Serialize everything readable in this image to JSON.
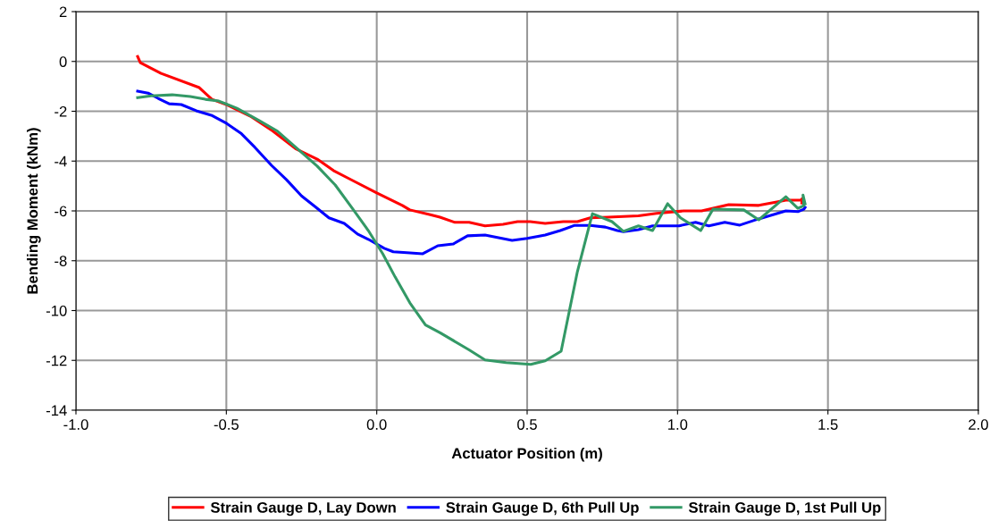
{
  "chart_data": {
    "type": "line",
    "xlabel": "Actuator Position (m)",
    "ylabel": "Bending Moment (kNm)",
    "xlim": [
      -1.0,
      2.0
    ],
    "ylim": [
      -14,
      2
    ],
    "xticks": [
      {
        "value": -1.0,
        "label": "-1.0"
      },
      {
        "value": -0.5,
        "label": "-0.5"
      },
      {
        "value": 0.0,
        "label": "0.0"
      },
      {
        "value": 0.5,
        "label": "0.5"
      },
      {
        "value": 1.0,
        "label": "1.0"
      },
      {
        "value": 1.5,
        "label": "1.5"
      },
      {
        "value": 2.0,
        "label": "2.0"
      }
    ],
    "yticks": [
      -14,
      -12,
      -10,
      -8,
      -6,
      -4,
      -2,
      0,
      2
    ],
    "grid": true,
    "legend": "bottom",
    "marker": "none",
    "line_style": "solid",
    "series": [
      {
        "name": "Strain Gauge D, Lay Down",
        "color": "#ff0000",
        "x": [
          -0.795,
          -0.786,
          -0.717,
          -0.59,
          -0.548,
          -0.5,
          -0.42,
          -0.345,
          -0.27,
          -0.198,
          -0.144,
          -0.093,
          0.0,
          0.085,
          0.11,
          0.175,
          0.21,
          0.26,
          0.307,
          0.36,
          0.42,
          0.468,
          0.51,
          0.56,
          0.62,
          0.667,
          0.71,
          0.77,
          0.87,
          0.93,
          1.02,
          1.08,
          1.17,
          1.27,
          1.33,
          1.36,
          1.41,
          1.415,
          1.413
        ],
        "values": [
          0.2,
          -0.05,
          -0.48,
          -1.05,
          -1.52,
          -1.73,
          -2.2,
          -2.8,
          -3.5,
          -3.92,
          -4.38,
          -4.7,
          -5.28,
          -5.78,
          -5.96,
          -6.14,
          -6.25,
          -6.46,
          -6.46,
          -6.6,
          -6.54,
          -6.43,
          -6.43,
          -6.5,
          -6.43,
          -6.43,
          -6.28,
          -6.25,
          -6.2,
          -6.1,
          -6.0,
          -6.0,
          -5.75,
          -5.78,
          -5.64,
          -5.57,
          -5.57,
          -5.5,
          -5.68
        ]
      },
      {
        "name": "Strain Gauge D, 6th Pull Up",
        "color": "#0000ff",
        "x": [
          -0.795,
          -0.76,
          -0.727,
          -0.69,
          -0.65,
          -0.6,
          -0.55,
          -0.5,
          -0.45,
          -0.405,
          -0.35,
          -0.3,
          -0.25,
          -0.203,
          -0.159,
          -0.108,
          -0.064,
          -0.028,
          0.025,
          0.055,
          0.1,
          0.153,
          0.203,
          0.254,
          0.302,
          0.36,
          0.45,
          0.5,
          0.56,
          0.61,
          0.658,
          0.71,
          0.76,
          0.8,
          0.82,
          0.87,
          0.917,
          1.005,
          1.06,
          1.104,
          1.157,
          1.207,
          1.27,
          1.36,
          1.4,
          1.42,
          1.424
        ],
        "values": [
          -1.19,
          -1.27,
          -1.48,
          -1.7,
          -1.73,
          -1.98,
          -2.16,
          -2.48,
          -2.9,
          -3.45,
          -4.17,
          -4.75,
          -5.4,
          -5.85,
          -6.28,
          -6.5,
          -6.93,
          -7.14,
          -7.5,
          -7.64,
          -7.68,
          -7.72,
          -7.4,
          -7.33,
          -7.0,
          -6.97,
          -7.18,
          -7.1,
          -6.97,
          -6.79,
          -6.58,
          -6.58,
          -6.65,
          -6.79,
          -6.83,
          -6.75,
          -6.6,
          -6.6,
          -6.46,
          -6.6,
          -6.46,
          -6.57,
          -6.32,
          -6.0,
          -6.03,
          -5.93,
          -5.86
        ]
      },
      {
        "name": "Strain Gauge D, 1st Pull Up",
        "color": "#339966",
        "x": [
          -0.795,
          -0.75,
          -0.68,
          -0.62,
          -0.57,
          -0.525,
          -0.465,
          -0.39,
          -0.33,
          -0.286,
          -0.198,
          -0.138,
          -0.079,
          -0.028,
          0.02,
          0.061,
          0.11,
          0.162,
          0.212,
          0.307,
          0.36,
          0.43,
          0.512,
          0.56,
          0.613,
          0.667,
          0.717,
          0.782,
          0.82,
          0.87,
          0.917,
          0.967,
          1.01,
          1.077,
          1.118,
          1.22,
          1.27,
          1.36,
          1.4,
          1.42,
          1.417,
          1.424
        ],
        "values": [
          -1.45,
          -1.38,
          -1.34,
          -1.41,
          -1.52,
          -1.59,
          -1.88,
          -2.38,
          -2.8,
          -3.27,
          -4.2,
          -4.96,
          -5.93,
          -6.79,
          -7.72,
          -8.65,
          -9.69,
          -10.58,
          -10.9,
          -11.58,
          -11.98,
          -12.09,
          -12.16,
          -12.02,
          -11.63,
          -8.44,
          -6.11,
          -6.43,
          -6.82,
          -6.6,
          -6.79,
          -5.71,
          -6.28,
          -6.79,
          -5.93,
          -5.96,
          -6.36,
          -5.43,
          -5.9,
          -5.79,
          -5.36,
          -5.72
        ]
      }
    ]
  }
}
